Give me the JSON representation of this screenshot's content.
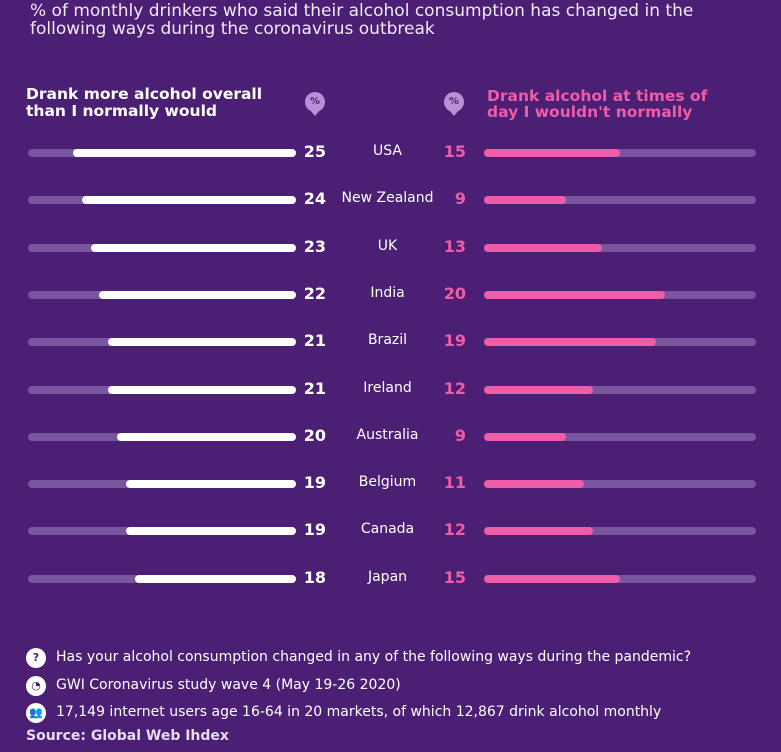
{
  "subtitle": "% of monthly drinkers who said their alcohol consumption has changed in the following ways during the coronavirus outbreak",
  "colors": {
    "background": "#4b1f73",
    "left_bar": "#ffffff",
    "right_bar": "#ef5ca8",
    "track": "#7a559f"
  },
  "chart_data": {
    "type": "bar",
    "title": "% of monthly drinkers who said their alcohol consumption has changed in the following ways during the coronavirus outbreak",
    "categories": [
      "USA",
      "New Zealand",
      "UK",
      "India",
      "Brazil",
      "Ireland",
      "Australia",
      "Belgium",
      "Canada",
      "Japan"
    ],
    "series": [
      {
        "name": "Drank more alcohol overall than I normally would",
        "values": [
          25,
          24,
          23,
          22,
          21,
          21,
          20,
          19,
          19,
          18
        ],
        "color": "#ffffff"
      },
      {
        "name": "Drank alcohol at times of day I wouldn't normally",
        "values": [
          15,
          9,
          13,
          20,
          19,
          12,
          9,
          11,
          12,
          15
        ],
        "color": "#ef5ca8"
      }
    ],
    "unit_icon": "%",
    "max": 30
  },
  "footer": [
    {
      "icon": "question-icon",
      "glyph": "?",
      "text": "Has your alcohol consumption changed in any of the following ways during the pandemic?"
    },
    {
      "icon": "pie-chart-icon",
      "glyph": "◔",
      "text": "GWI Coronavirus study wave 4 (May 19-26 2020)"
    },
    {
      "icon": "people-icon",
      "glyph": "👥",
      "text": "17,149 internet users age 16-64 in 20 markets, of which 12,867 drink alcohol monthly"
    }
  ],
  "source": "Source: Global Web Ihdex"
}
